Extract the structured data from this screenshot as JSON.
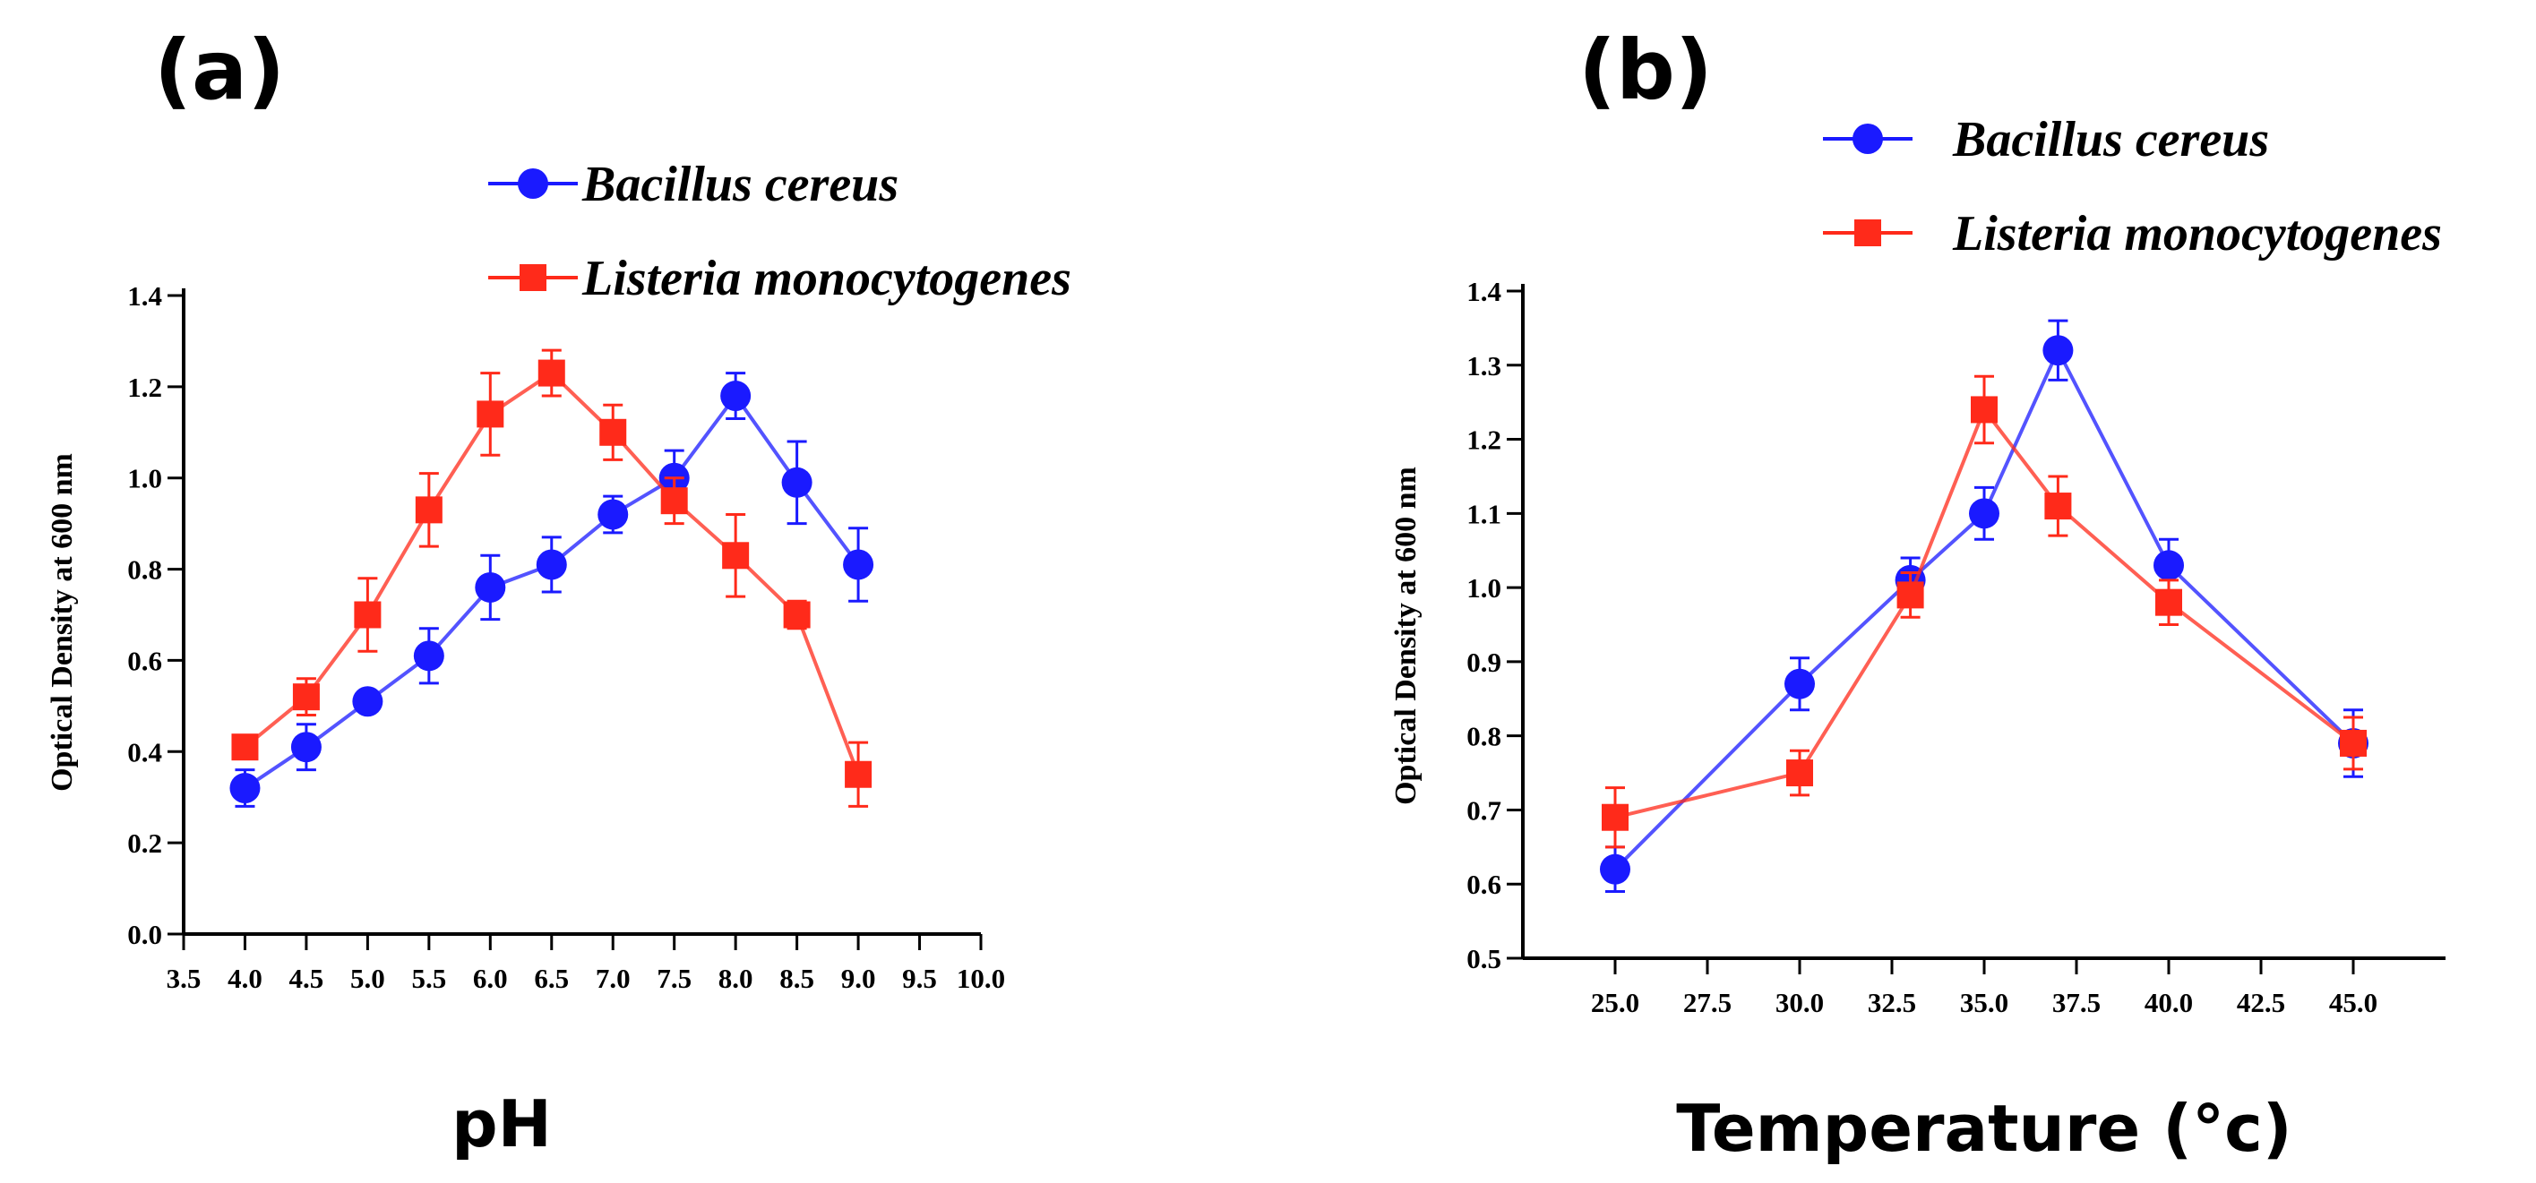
{
  "chart_data": [
    {
      "type": "line",
      "panel_label": "(a)",
      "title": "",
      "xlabel": "pH",
      "ylabel": "Optical Density at 600 nm",
      "xlim": [
        3.5,
        10.0
      ],
      "ylim": [
        0.0,
        1.4
      ],
      "x_ticks": [
        "3.5",
        "4.0",
        "4.5",
        "5.0",
        "5.5",
        "6.0",
        "6.5",
        "7.0",
        "7.5",
        "8.0",
        "8.5",
        "9.0",
        "9.5",
        "10.0"
      ],
      "y_ticks": [
        "0.0",
        "0.2",
        "0.4",
        "0.6",
        "0.8",
        "1.0",
        "1.2",
        "1.4"
      ],
      "grid": false,
      "legend_position": "top-right",
      "series": [
        {
          "name": "Bacillus cereus",
          "color": "#1a1aff",
          "marker": "circle",
          "x": [
            4.0,
            4.5,
            5.0,
            5.5,
            6.0,
            6.5,
            7.0,
            7.5,
            8.0,
            8.5,
            9.0
          ],
          "values": [
            0.32,
            0.41,
            0.51,
            0.61,
            0.76,
            0.81,
            0.92,
            1.0,
            1.18,
            0.99,
            0.81
          ],
          "errors": [
            0.04,
            0.05,
            0.02,
            0.06,
            0.07,
            0.06,
            0.04,
            0.06,
            0.05,
            0.09,
            0.08
          ]
        },
        {
          "name": "Listeria monocytogenes",
          "color": "#ff2a1a",
          "marker": "square",
          "x": [
            4.0,
            4.5,
            5.0,
            5.5,
            6.0,
            6.5,
            7.0,
            7.5,
            8.0,
            8.5,
            9.0
          ],
          "values": [
            0.41,
            0.52,
            0.7,
            0.93,
            1.14,
            1.23,
            1.1,
            0.95,
            0.83,
            0.7,
            0.35
          ],
          "errors": [
            0.02,
            0.04,
            0.08,
            0.08,
            0.09,
            0.05,
            0.06,
            0.05,
            0.09,
            0.03,
            0.07
          ]
        }
      ]
    },
    {
      "type": "line",
      "panel_label": "(b)",
      "title": "",
      "xlabel": "Temperature (°c)",
      "ylabel": "Optical Density at 600 nm",
      "xlim": [
        22.5,
        47.5
      ],
      "ylim": [
        0.5,
        1.4
      ],
      "x_ticks": [
        "25.0",
        "27.5",
        "30.0",
        "32.5",
        "35.0",
        "37.5",
        "40.0",
        "42.5",
        "45.0"
      ],
      "y_ticks": [
        "0.5",
        "0.6",
        "0.7",
        "0.8",
        "0.9",
        "1.0",
        "1.1",
        "1.2",
        "1.3",
        "1.4"
      ],
      "grid": false,
      "legend_position": "top",
      "series": [
        {
          "name": "Bacillus cereus",
          "color": "#1a1aff",
          "marker": "circle",
          "x": [
            25.0,
            30.0,
            33.0,
            35.0,
            37.0,
            40.0,
            45.0
          ],
          "values": [
            0.62,
            0.87,
            1.01,
            1.1,
            1.32,
            1.03,
            0.79
          ],
          "errors": [
            0.03,
            0.035,
            0.03,
            0.035,
            0.04,
            0.035,
            0.045
          ]
        },
        {
          "name": "Listeria monocytogenes",
          "color": "#ff2a1a",
          "marker": "square",
          "x": [
            25.0,
            30.0,
            33.0,
            35.0,
            37.0,
            40.0,
            45.0
          ],
          "values": [
            0.69,
            0.75,
            0.99,
            1.24,
            1.11,
            0.98,
            0.79
          ],
          "errors": [
            0.04,
            0.03,
            0.03,
            0.045,
            0.04,
            0.03,
            0.035
          ]
        }
      ]
    }
  ]
}
